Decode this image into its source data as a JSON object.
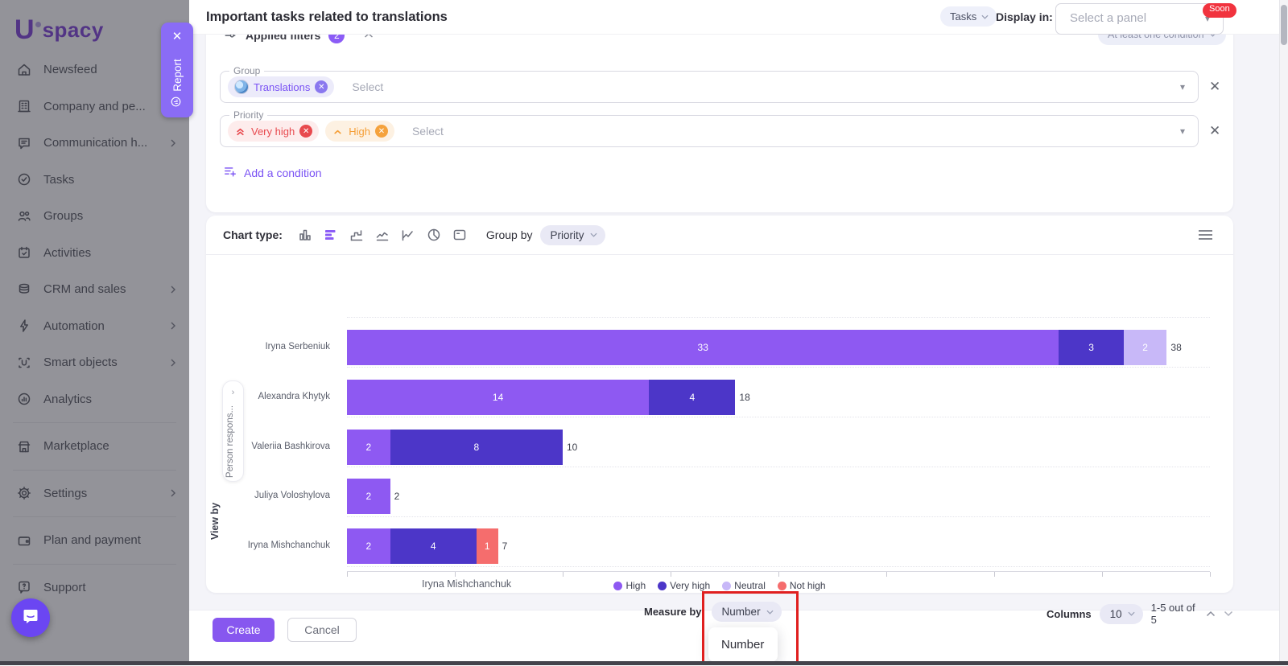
{
  "sidebar": {
    "logo": {
      "letter": "U",
      "rest": "spacy"
    },
    "items": [
      {
        "label": "Newsfeed",
        "icon": "home",
        "chevron": false,
        "divider_before": false
      },
      {
        "label": "Company and pe...",
        "icon": "building",
        "chevron": true,
        "divider_before": false
      },
      {
        "label": "Communication h...",
        "icon": "chat",
        "chevron": true,
        "divider_before": false
      },
      {
        "label": "Tasks",
        "icon": "check-circle",
        "chevron": false,
        "divider_before": false
      },
      {
        "label": "Groups",
        "icon": "people",
        "chevron": false,
        "divider_before": false
      },
      {
        "label": "Activities",
        "icon": "calendar",
        "chevron": false,
        "divider_before": false
      },
      {
        "label": "CRM and sales",
        "icon": "database",
        "chevron": true,
        "divider_before": false
      },
      {
        "label": "Automation",
        "icon": "bolt",
        "chevron": true,
        "divider_before": false
      },
      {
        "label": "Smart objects",
        "icon": "scan",
        "chevron": true,
        "divider_before": false
      },
      {
        "label": "Analytics",
        "icon": "analytics",
        "chevron": false,
        "divider_before": false
      },
      {
        "label": "Marketplace",
        "icon": "store",
        "chevron": false,
        "divider_before": true
      },
      {
        "label": "Settings",
        "icon": "gear",
        "chevron": true,
        "divider_before": true
      },
      {
        "label": "Plan and payment",
        "icon": "wallet",
        "chevron": false,
        "divider_before": true
      },
      {
        "label": "Support",
        "icon": "support",
        "chevron": false,
        "divider_before": true
      }
    ]
  },
  "report_tab": {
    "label": "Report"
  },
  "modal": {
    "header": {
      "title": "Important tasks related to translations",
      "context_pill": "Tasks",
      "display_in_label": "Display in:",
      "panel_placeholder": "Select a panel",
      "soon_badge": "Soon"
    },
    "filters": {
      "section_title": "Applied filters",
      "count_badge": "2",
      "condition_pill": "At least one condition",
      "fields": [
        {
          "label": "Group",
          "placeholder": "Select",
          "chips": [
            {
              "text": "Translations",
              "type": "group"
            }
          ]
        },
        {
          "label": "Priority",
          "placeholder": "Select",
          "chips": [
            {
              "text": "Very high",
              "type": "very-high"
            },
            {
              "text": "High",
              "type": "high"
            }
          ]
        }
      ],
      "add_condition_label": "Add a condition"
    },
    "chart_toolbar": {
      "chart_type_label": "Chart type:",
      "types": [
        {
          "name": "column-chart",
          "active": false
        },
        {
          "name": "horizontal-bar-chart",
          "active": true
        },
        {
          "name": "step-area-chart",
          "active": false
        },
        {
          "name": "line-chart",
          "active": false
        },
        {
          "name": "line-chart-alt",
          "active": false
        },
        {
          "name": "pie-chart",
          "active": false
        },
        {
          "name": "scorecard",
          "active": false
        }
      ],
      "group_by_label": "Group by",
      "group_by_value": "Priority"
    },
    "chart_footer": {
      "measure_by_label": "Measure by",
      "measure_by_value": "Number",
      "dropdown_options": [
        "Number"
      ],
      "columns_label": "Columns",
      "columns_value": "10",
      "pagination_text": "1-5 out of 5"
    },
    "footer": {
      "create_label": "Create",
      "cancel_label": "Cancel"
    }
  },
  "chart_data": {
    "type": "bar",
    "orientation": "horizontal",
    "stacked": true,
    "categories": [
      "Iryna Serbeniuk",
      "Alexandra Khytyk",
      "Valeriia Bashkirova",
      "Juliya Voloshylova",
      "Iryna Mishchanchuk"
    ],
    "series": [
      {
        "name": "High",
        "color": "#8e59f2",
        "values": [
          33,
          14,
          2,
          2,
          2
        ]
      },
      {
        "name": "Very high",
        "color": "#4c36c8",
        "values": [
          3,
          4,
          8,
          0,
          4
        ]
      },
      {
        "name": "Neutral",
        "color": "#c8b8f8",
        "values": [
          2,
          0,
          0,
          0,
          0
        ]
      },
      {
        "name": "Not high",
        "color": "#f56d6d",
        "values": [
          0,
          0,
          0,
          0,
          1
        ]
      }
    ],
    "totals": [
      38,
      18,
      10,
      2,
      7
    ],
    "xlim": [
      0,
      40
    ],
    "x_tick_step": 5,
    "xlabel": "Iryna Mishchanchuk",
    "ylabel": "Person respons...",
    "view_by_label": "View by",
    "legend_position": "bottom",
    "grid": true
  }
}
